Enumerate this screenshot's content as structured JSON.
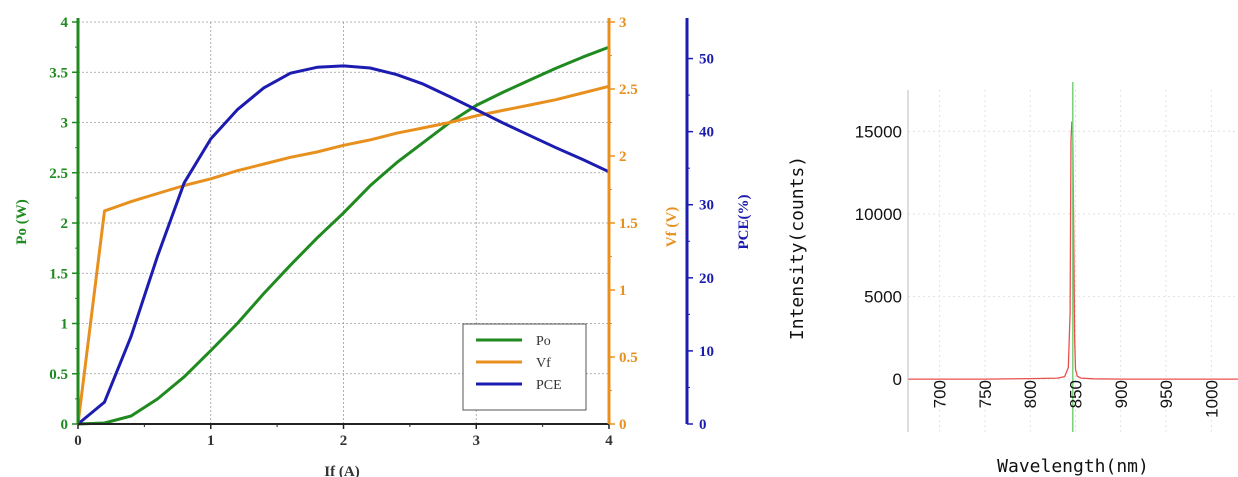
{
  "chart_data": [
    {
      "type": "line",
      "title": "",
      "xlabel": "If (A)",
      "xlim": [
        0,
        4
      ],
      "xticks": [
        0,
        1,
        2,
        3,
        4
      ],
      "grid": true,
      "legend_position": "bottom-right",
      "axes": {
        "left": {
          "label": "Po (W)",
          "ylim": [
            0,
            4
          ],
          "ticks": [
            0,
            0.5,
            1,
            1.5,
            2,
            2.5,
            3,
            3.5,
            4
          ],
          "color": "#1f8a1f"
        },
        "right_inner": {
          "label": "Vf (V)",
          "ylim": [
            0,
            3
          ],
          "ticks": [
            0,
            0.5,
            1,
            1.5,
            2,
            2.5,
            3
          ],
          "color": "#e8901e"
        },
        "right_outer": {
          "label": "PCE(%)",
          "ylim": [
            0,
            55
          ],
          "ticks": [
            0,
            10,
            20,
            30,
            40,
            50
          ],
          "color": "#1c1cb0"
        }
      },
      "series": [
        {
          "name": "Po",
          "axis": "left",
          "color": "#1f8a1f",
          "x": [
            0,
            0.2,
            0.4,
            0.6,
            0.8,
            1.0,
            1.2,
            1.4,
            1.6,
            1.8,
            2.0,
            2.2,
            2.4,
            2.6,
            2.8,
            3.0,
            3.2,
            3.4,
            3.6,
            3.8,
            4.0
          ],
          "y": [
            0,
            0.01,
            0.08,
            0.25,
            0.47,
            0.73,
            1.0,
            1.3,
            1.58,
            1.85,
            2.1,
            2.37,
            2.6,
            2.8,
            3.0,
            3.17,
            3.3,
            3.42,
            3.54,
            3.65,
            3.75
          ]
        },
        {
          "name": "Vf",
          "axis": "right_inner",
          "color": "#e8901e",
          "x": [
            0,
            0.2,
            0.4,
            0.6,
            0.8,
            1.0,
            1.2,
            1.4,
            1.6,
            1.8,
            2.0,
            2.2,
            2.4,
            2.6,
            2.8,
            3.0,
            3.2,
            3.4,
            3.6,
            3.8,
            4.0
          ],
          "y": [
            0,
            1.59,
            1.66,
            1.72,
            1.78,
            1.83,
            1.89,
            1.94,
            1.99,
            2.03,
            2.08,
            2.12,
            2.17,
            2.21,
            2.25,
            2.3,
            2.34,
            2.38,
            2.42,
            2.47,
            2.52
          ]
        },
        {
          "name": "PCE",
          "axis": "right_outer",
          "color": "#1c1cb0",
          "x": [
            0,
            0.2,
            0.4,
            0.6,
            0.8,
            1.0,
            1.2,
            1.4,
            1.6,
            1.8,
            2.0,
            2.2,
            2.4,
            2.6,
            2.8,
            3.0,
            3.2,
            3.4,
            3.6,
            3.8,
            4.0
          ],
          "y": [
            0,
            3,
            12,
            23,
            33,
            39,
            43,
            46,
            48,
            48.8,
            49,
            48.7,
            47.8,
            46.5,
            44.8,
            43,
            41.2,
            39.5,
            37.8,
            36.2,
            34.5
          ]
        }
      ]
    },
    {
      "type": "line",
      "title": "",
      "xlabel": "Wavelength(nm)",
      "ylabel": "Intensity(counts)",
      "xlim": [
        665,
        1035
      ],
      "ylim": [
        -3200,
        17500
      ],
      "xticks": [
        700,
        750,
        800,
        850,
        900,
        950,
        1000
      ],
      "yticks": [
        0,
        5000,
        10000,
        15000
      ],
      "grid": true,
      "marker_line_x": 847,
      "marker_color": "#7ad17a",
      "series": [
        {
          "color": "#e85050",
          "x": [
            665,
            700,
            750,
            800,
            830,
            838,
            842,
            844,
            845,
            846,
            847,
            848,
            849,
            850,
            852,
            856,
            870,
            900,
            950,
            1000,
            1035
          ],
          "y": [
            0,
            0,
            0,
            30,
            60,
            150,
            700,
            4000,
            14500,
            15600,
            15300,
            9000,
            2500,
            600,
            180,
            60,
            20,
            0,
            0,
            0,
            0
          ]
        }
      ]
    }
  ]
}
